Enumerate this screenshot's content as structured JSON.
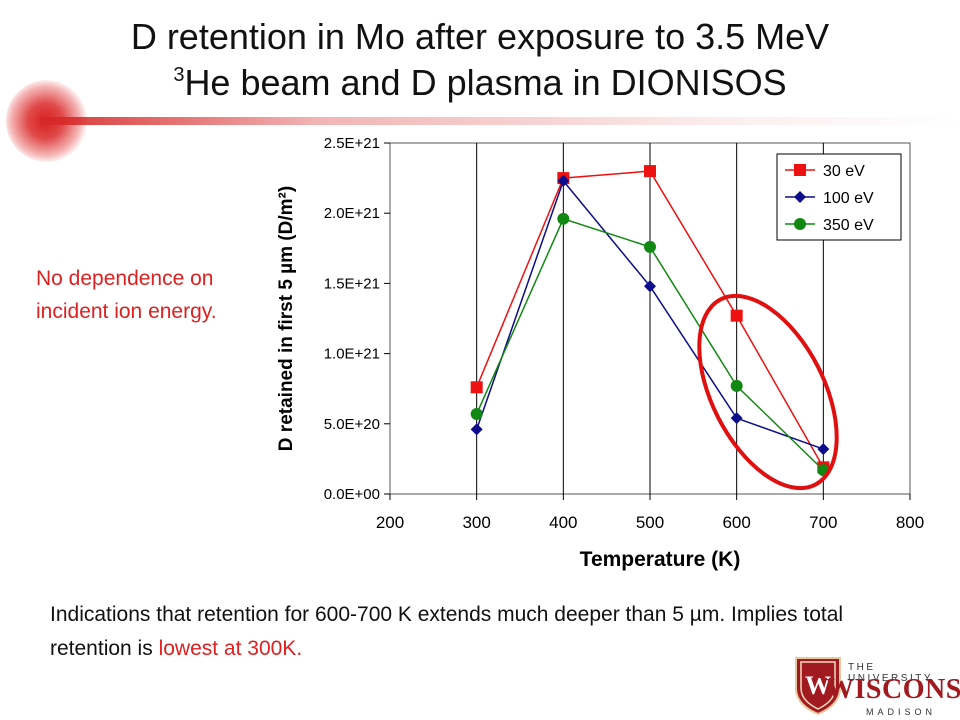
{
  "slide": {
    "title_line1": "D retention in Mo after exposure to 3.5 MeV",
    "title_sup": "3",
    "title_line2": "He beam and D plasma in DIONISOS",
    "side_note": "No dependence on incident ion energy.",
    "caption_part1": "Indications that retention for 600-700 K extends much deeper than 5 µm. Implies total retention is ",
    "caption_highlight": "lowest at 300K.",
    "logo": {
      "line1": "THE UNIVERSITY",
      "line2": "WISCONSIN",
      "line3": "MADISON",
      "crest_letter": "W"
    },
    "colors": {
      "accent_red": "#e02020",
      "logo_red": "#a11a1f"
    }
  },
  "chart_data": {
    "type": "line",
    "xlabel": "Temperature (K)",
    "ylabel": "D retained in first 5 µm (D/m²)",
    "xlim": [
      200,
      800
    ],
    "ylim": [
      0,
      2.5e+21
    ],
    "x_ticks": [
      200,
      300,
      400,
      500,
      600,
      700,
      800
    ],
    "y_ticks": [
      0,
      5e+20,
      1e+21,
      1.5e+21,
      2e+21,
      2.5e+21
    ],
    "y_tick_labels": [
      "0.0E+00",
      "5.0E+20",
      "1.0E+21",
      "1.5E+21",
      "2.0E+21",
      "2.5E+21"
    ],
    "grid": "vertical",
    "legend_position": "top-right",
    "x": [
      300,
      400,
      500,
      600,
      700
    ],
    "series": [
      {
        "name": "30 eV",
        "color": "#ee1111",
        "marker": "square",
        "values": [
          7.6e+20,
          2.25e+21,
          2.3e+21,
          1.27e+21,
          1.9e+20
        ]
      },
      {
        "name": "100 eV",
        "color": "#0d0d8c",
        "marker": "diamond",
        "values": [
          4.6e+20,
          2.23e+21,
          1.48e+21,
          5.4e+20,
          3.2e+20
        ]
      },
      {
        "name": "350 eV",
        "color": "#118811",
        "marker": "circle",
        "values": [
          5.7e+20,
          1.96e+21,
          1.76e+21,
          7.7e+20,
          1.7e+20
        ]
      }
    ],
    "annotation": "red ellipse around 600-700 K points"
  }
}
